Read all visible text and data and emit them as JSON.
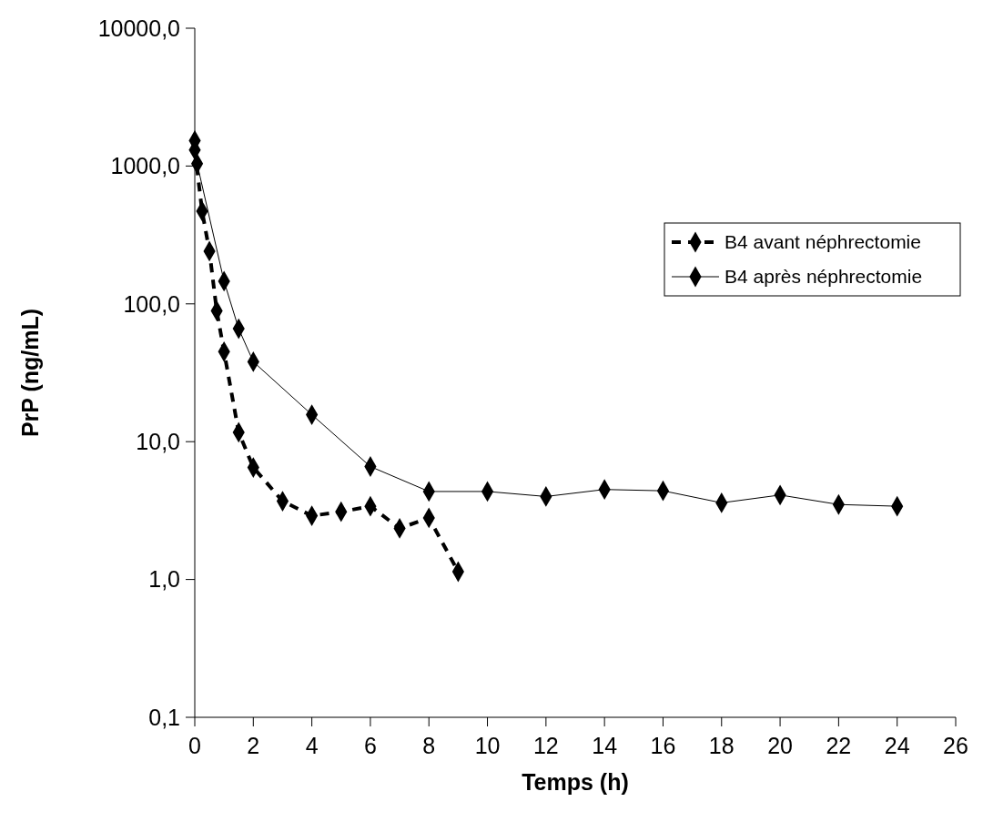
{
  "chart_data": {
    "type": "line",
    "xlabel": "Temps (h)",
    "ylabel": "PrP (ng/mL)",
    "log": "y",
    "xlim": [
      0,
      26
    ],
    "xticks": [
      0,
      2,
      4,
      6,
      8,
      10,
      12,
      14,
      16,
      18,
      20,
      22,
      24,
      26
    ],
    "ylim": [
      0.1,
      10000
    ],
    "yticks": [
      {
        "value": 0.1,
        "label": "0,1"
      },
      {
        "value": 1,
        "label": "1,0"
      },
      {
        "value": 10,
        "label": "10,0"
      },
      {
        "value": 100,
        "label": "100,0"
      },
      {
        "value": 1000,
        "label": "1000,0"
      },
      {
        "value": 10000,
        "label": "10000,0"
      }
    ],
    "grid": false,
    "legend": "right",
    "marker": "diamond",
    "series": [
      {
        "name": "B4 avant néphrectomie",
        "color": "#000000",
        "line_style": "dashed",
        "x": [
          0,
          0.25,
          0.5,
          0.75,
          1,
          1.5,
          2,
          3,
          4,
          5,
          6,
          7,
          8,
          9
        ],
        "values": [
          1310,
          471,
          241,
          89,
          45,
          11.7,
          6.5,
          3.7,
          2.9,
          3.1,
          3.4,
          2.35,
          2.8,
          1.14
        ]
      },
      {
        "name": "B4 après néphrectomie",
        "color": "#000000",
        "line_style": "solid",
        "x": [
          0,
          0.08,
          1,
          1.5,
          2,
          4,
          6,
          8,
          10,
          12,
          14,
          16,
          18,
          20,
          22,
          24
        ],
        "values": [
          1530,
          1040,
          146,
          66,
          38,
          15.7,
          6.6,
          4.35,
          4.35,
          4.0,
          4.5,
          4.4,
          3.6,
          4.1,
          3.5,
          3.4
        ]
      }
    ]
  }
}
